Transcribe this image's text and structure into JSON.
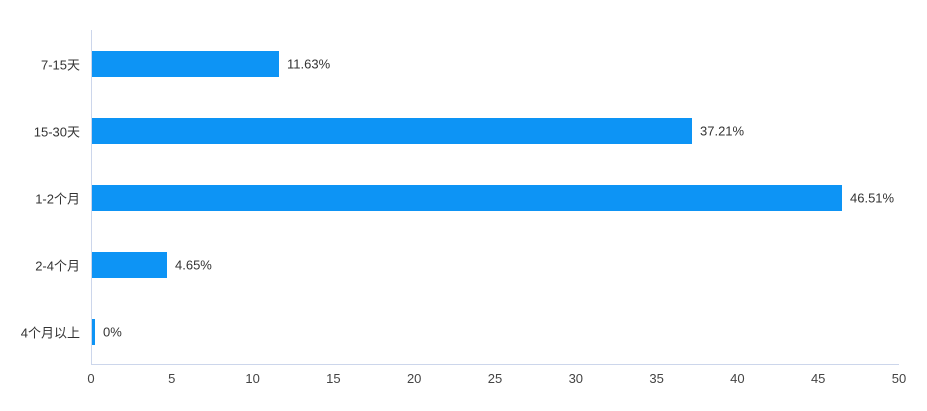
{
  "chart_data": {
    "type": "bar",
    "orientation": "horizontal",
    "title": "",
    "xlabel": "",
    "ylabel": "",
    "categories": [
      "7-15天",
      "15-30天",
      "1-2个月",
      "2-4个月",
      "4个月以上"
    ],
    "values": [
      11.63,
      37.21,
      46.51,
      4.65,
      0
    ],
    "value_labels": [
      "11.63%",
      "37.21%",
      "46.51%",
      "4.65%",
      "0%"
    ],
    "xlim": [
      0,
      50
    ],
    "x_ticks": [
      "0",
      "5",
      "10",
      "15",
      "20",
      "25",
      "30",
      "35",
      "40",
      "45",
      "50"
    ],
    "grid": false,
    "legend": false,
    "colors": {
      "bar": "#0d94f5",
      "axis_line": "#ccd6eb",
      "label_text": "#333333",
      "tick_text": "#444444",
      "background": "#ffffff"
    }
  }
}
